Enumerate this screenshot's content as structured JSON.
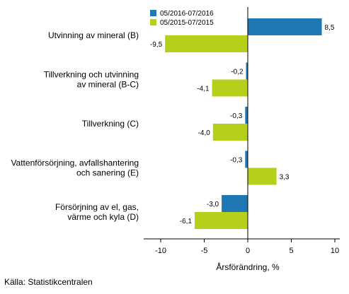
{
  "chart_data": {
    "type": "bar",
    "orientation": "horizontal",
    "categories": [
      [
        "Utvinning av mineral (B)"
      ],
      [
        "Tillverkning och utvinning",
        "av mineral (B-C)"
      ],
      [
        "Tillverkning (C)"
      ],
      [
        "Vattenförsörjning, avfallshantering",
        "och sanering (E)"
      ],
      [
        "Försörjning av el, gas,",
        "värme och kyla (D)"
      ]
    ],
    "series": [
      {
        "name": "05/2016-07/2016",
        "color": "#1f77b4",
        "values": [
          8.5,
          -0.2,
          -0.3,
          -0.3,
          -3.0
        ],
        "labels": [
          "8,5",
          "-0,2",
          "-0,3",
          "-0,3",
          "-3,0"
        ]
      },
      {
        "name": "05/2015-07/2015",
        "color": "#b5cf1b",
        "values": [
          -9.5,
          -4.1,
          -4.0,
          3.3,
          -6.1
        ],
        "labels": [
          "-9,5",
          "-4,1",
          "-4,0",
          "3,3",
          "-6,1"
        ]
      }
    ],
    "xlabel": "Årsförändring, %",
    "xlim": [
      -12,
      10.5
    ],
    "xticks": [
      -10,
      -5,
      0,
      5,
      10
    ],
    "xtick_labels": [
      "-10",
      "-5",
      "0",
      "5",
      "10"
    ],
    "legend_position": "top-left"
  },
  "source": "Källa: Statistikcentralen"
}
